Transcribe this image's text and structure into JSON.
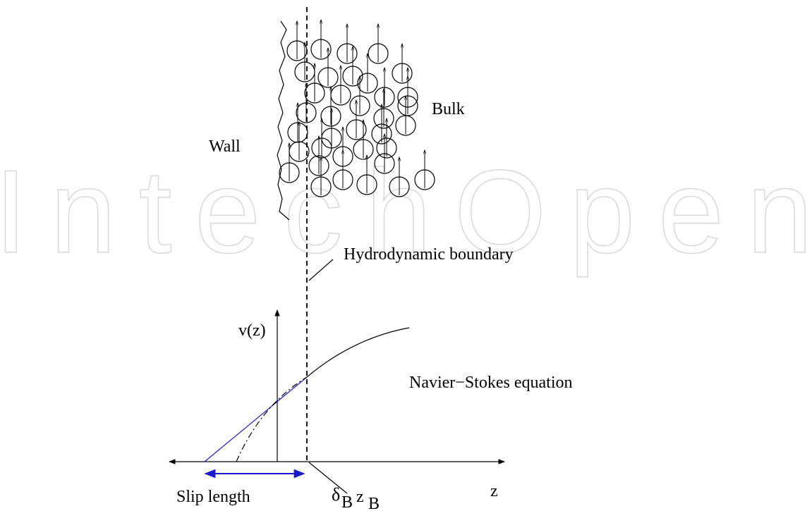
{
  "watermark": "IntechOpen",
  "labels": {
    "wall": "Wall",
    "bulk": "Bulk",
    "boundary": "Hydrodynamic boundary",
    "velocity": "v(z)",
    "equation": "Navier−Stokes equation",
    "axis": "z",
    "slip": "Slip length",
    "delta": "δ",
    "delta_sub": "B",
    "zb": "z",
    "zb_sub": "B"
  }
}
